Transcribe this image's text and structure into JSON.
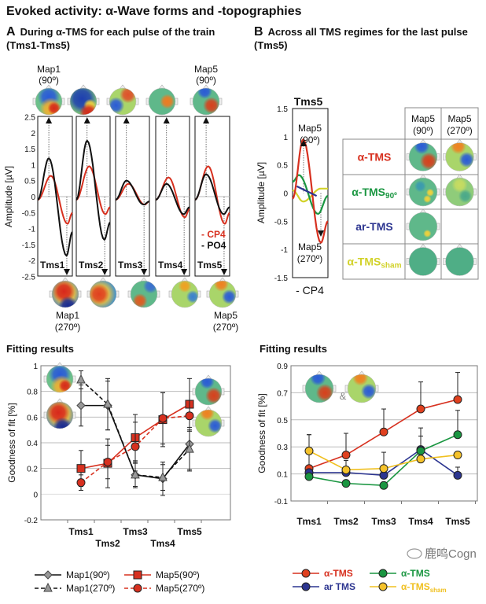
{
  "title": "Evoked activity: α-Wave forms and -topographies",
  "panel_a": {
    "label": "A",
    "heading": "During α-TMS for each pulse of the train (Tms1-Tms5)",
    "map_top_left": [
      "Map1",
      "(90º)"
    ],
    "map_top_right": [
      "Map5",
      "(90º)"
    ],
    "map_bottom_left": [
      "Map1",
      "(270º)"
    ],
    "map_bottom_right": [
      "Map5",
      "(270º)"
    ],
    "legend": [
      {
        "label": "- CP4",
        "color": "#d7301f"
      },
      {
        "label": "- PO4",
        "color": "#111111"
      }
    ]
  },
  "panel_b": {
    "label": "B",
    "heading": "Across all TMS regimes for the last pulse (Tms5)",
    "plot_title": "Tms5",
    "map_top": [
      "Map5",
      "(90º)"
    ],
    "map_bottom": [
      "Map5",
      "(270º)"
    ],
    "channel": "- CP4",
    "table": {
      "columns": [
        [
          "Map5",
          "(90º)"
        ],
        [
          "Map5",
          "(270º)"
        ]
      ],
      "rows": [
        {
          "label": "α-TMS",
          "sub": "",
          "color": "#d7301f"
        },
        {
          "label": "α-TMS",
          "sub": "90º",
          "color": "#1a9641"
        },
        {
          "label": "ar-TMS",
          "sub": "",
          "color": "#2c3590"
        },
        {
          "label": "α-TMS",
          "sub": "sham",
          "color": "#d2d22a"
        }
      ]
    }
  },
  "fitting_left_title": "Fitting results",
  "fitting_right_title": "Fitting results",
  "ampersand": "&",
  "watermark": "鹿鸣Cogn",
  "chart_data": [
    {
      "type": "line",
      "ylabel": "Amplitude [µV]",
      "ylim": [
        -2.5,
        2.5
      ],
      "yticks": [
        2.5,
        2,
        1.5,
        1,
        0.5,
        0,
        -0.5,
        -1,
        -1.5,
        -2,
        -2.5
      ],
      "categories": [
        "Tms1",
        "Tms2",
        "Tms3",
        "Tms4",
        "Tms5"
      ],
      "series": [
        {
          "name": "CP4",
          "color": "#d7301f",
          "peak": [
            0.65,
            0.95,
            0.4,
            0.6,
            0.95
          ],
          "trough": [
            -0.85,
            -0.55,
            -0.25,
            -0.65,
            -0.85
          ]
        },
        {
          "name": "PO4",
          "color": "#111111",
          "peak": [
            1.2,
            1.75,
            0.5,
            0.4,
            0.7
          ],
          "trough": [
            -1.85,
            -1.35,
            -0.25,
            -0.55,
            -0.55
          ]
        }
      ]
    },
    {
      "type": "line",
      "ylabel": "Amplitude [µV]",
      "ylim": [
        -1.5,
        1.5
      ],
      "yticks": [
        1.5,
        1,
        0.5,
        0,
        -0.5,
        -1,
        -1.5
      ],
      "series": [
        {
          "regime": "α-TMS",
          "color": "#d7301f",
          "peak": 0.95,
          "trough": -0.88
        },
        {
          "regime": "α-TMS90º",
          "color": "#1a9641",
          "peak": 0.32,
          "trough": -0.37
        },
        {
          "regime": "ar-TMS",
          "color": "#2c3590",
          "peak": 0.12,
          "trough": -0.05
        },
        {
          "regime": "α-TMSsham",
          "color": "#d2d22a",
          "peak": 0.08,
          "trough": -0.15
        }
      ]
    },
    {
      "type": "line",
      "ylabel": "Goodness of fit [%]",
      "ylim": [
        -0.2,
        1
      ],
      "yticks": [
        1,
        0.8,
        0.6,
        0.4,
        0.2,
        0,
        -0.2
      ],
      "grid": true,
      "categories": [
        "Tms1",
        "Tms2",
        "Tms3",
        "Tms4",
        "Tms5"
      ],
      "series": [
        {
          "name": "Map1(90º)",
          "marker": "diamond",
          "dash": false,
          "color": "#111111",
          "fill": "#999999",
          "values": [
            0.69,
            0.69,
            0.15,
            0.12,
            0.39
          ],
          "error": [
            0.16,
            0.19,
            0.09,
            0.13,
            0.2
          ]
        },
        {
          "name": "Map1(270º)",
          "marker": "triangle",
          "dash": true,
          "color": "#111111",
          "fill": "#999999",
          "values": [
            0.89,
            0.7,
            0.15,
            0.13,
            0.35
          ],
          "error": [
            0.07,
            0.2,
            0.1,
            0.1,
            0.17
          ]
        },
        {
          "name": "Map5(90º)",
          "marker": "square",
          "dash": false,
          "color": "#d7301f",
          "fill": "#d7301f",
          "values": [
            0.2,
            0.24,
            0.44,
            0.58,
            0.7
          ],
          "error": [
            0.14,
            0.19,
            0.18,
            0.21,
            0.2
          ]
        },
        {
          "name": "Map5(270º)",
          "marker": "circle",
          "dash": true,
          "color": "#d7301f",
          "fill": "#d7301f",
          "values": [
            0.09,
            0.25,
            0.37,
            0.59,
            0.61
          ],
          "error": [
            0.06,
            0.13,
            0.19,
            0.2,
            0.12
          ]
        }
      ]
    },
    {
      "type": "line",
      "ylabel": "Goodness of fit [%]",
      "ylim": [
        -0.1,
        0.9
      ],
      "yticks": [
        0.9,
        0.7,
        0.5,
        0.3,
        0.1,
        -0.1
      ],
      "grid": true,
      "categories": [
        "Tms1",
        "Tms2",
        "Tms3",
        "Tms4",
        "Tms5"
      ],
      "series": [
        {
          "name": "α-TMS",
          "sub": "",
          "color": "#d7301f",
          "fill": "#e0401e",
          "values": [
            0.14,
            0.24,
            0.41,
            0.58,
            0.65
          ],
          "error": [
            0.25,
            0.16,
            0.17,
            0.2,
            0.2
          ]
        },
        {
          "name": "ar TMS",
          "sub": "",
          "color": "#2c3590",
          "fill": "#2c3590",
          "values": [
            0.11,
            0.11,
            0.09,
            0.28,
            0.09
          ],
          "error": [
            0,
            0,
            0,
            0.16,
            0.06
          ]
        },
        {
          "name": "α-TMS",
          "sub": "",
          "color": "#1a9641",
          "fill": "#1a9641",
          "values": [
            0.08,
            0.03,
            0.015,
            0.27,
            0.39
          ],
          "error": [
            0,
            0,
            0,
            0.11,
            0.18
          ]
        },
        {
          "name": "α-TMS",
          "sub": "sham",
          "color": "#f0c020",
          "fill": "#f5c22a",
          "values": [
            0.27,
            0.13,
            0.14,
            0.21,
            0.24
          ],
          "error": [
            0.12,
            0.07,
            0.12,
            0,
            0
          ]
        }
      ]
    }
  ]
}
